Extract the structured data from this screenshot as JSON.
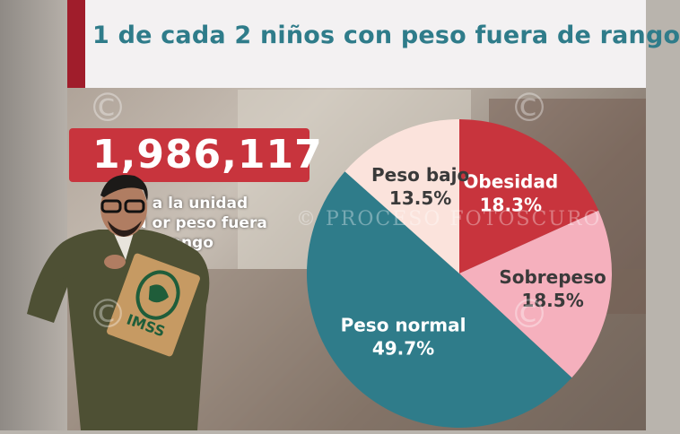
{
  "slide": {
    "title": "1 de cada 2 niños con peso fuera de rango",
    "stat_value": "1,986,117",
    "stat_caption_lines": [
      "re       a la unidad",
      "méd     or peso fuera",
      "rango"
    ]
  },
  "logo": {
    "text": "IMSS"
  },
  "watermark": {
    "text": "© PROCESO FOTOSCURO"
  },
  "colors": {
    "title_text": "#2f7c8a",
    "accent_red": "#c8343d",
    "obesidad": "#c8343d",
    "sobrepeso": "#f5b0bd",
    "peso_normal": "#2f7c8a",
    "peso_bajo": "#fbe3dc"
  },
  "chart_data": {
    "type": "pie",
    "title": "",
    "slices": [
      {
        "label": "Obesidad",
        "value": 18.3,
        "display": "18.3%",
        "color": "#c8343d"
      },
      {
        "label": "Sobrepeso",
        "value": 18.5,
        "display": "18.5%",
        "color": "#f5b0bd"
      },
      {
        "label": "Peso normal",
        "value": 49.7,
        "display": "49.7%",
        "color": "#2f7c8a"
      },
      {
        "label": "Peso bajo",
        "value": 13.5,
        "display": "13.5%",
        "color": "#fbe3dc"
      }
    ]
  }
}
